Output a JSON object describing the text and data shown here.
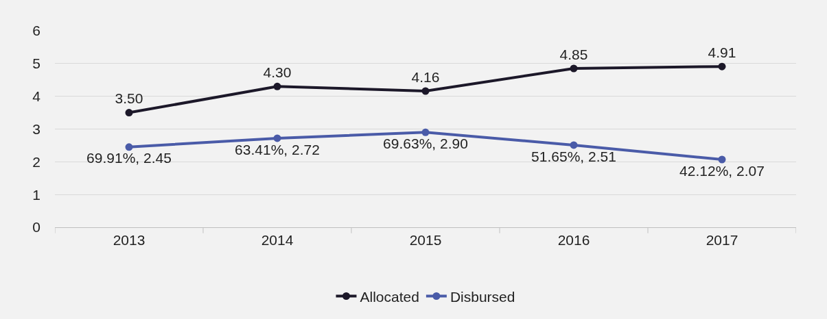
{
  "chart_data": {
    "type": "line",
    "categories": [
      "2013",
      "2014",
      "2015",
      "2016",
      "2017"
    ],
    "series": [
      {
        "name": "Allocated",
        "color": "#1c1829",
        "values": [
          3.5,
          4.3,
          4.16,
          4.85,
          4.91
        ],
        "value_labels": [
          "3.50",
          "4.30",
          "4.16",
          "4.85",
          "4.91"
        ]
      },
      {
        "name": "Disbursed",
        "color": "#4a5ba8",
        "values": [
          2.45,
          2.72,
          2.9,
          2.51,
          2.07
        ],
        "value_labels": [
          "69.91%, 2.45",
          "63.41%, 2.72",
          "69.63%, 2.90",
          "51.65%, 2.51",
          "42.12%, 2.07"
        ]
      }
    ],
    "ylim": [
      0,
      6
    ],
    "yticks": [
      0,
      1,
      2,
      3,
      4,
      5,
      6
    ],
    "grid": "y",
    "legend": "bottom",
    "marker": "circle",
    "line_style": "solid"
  }
}
